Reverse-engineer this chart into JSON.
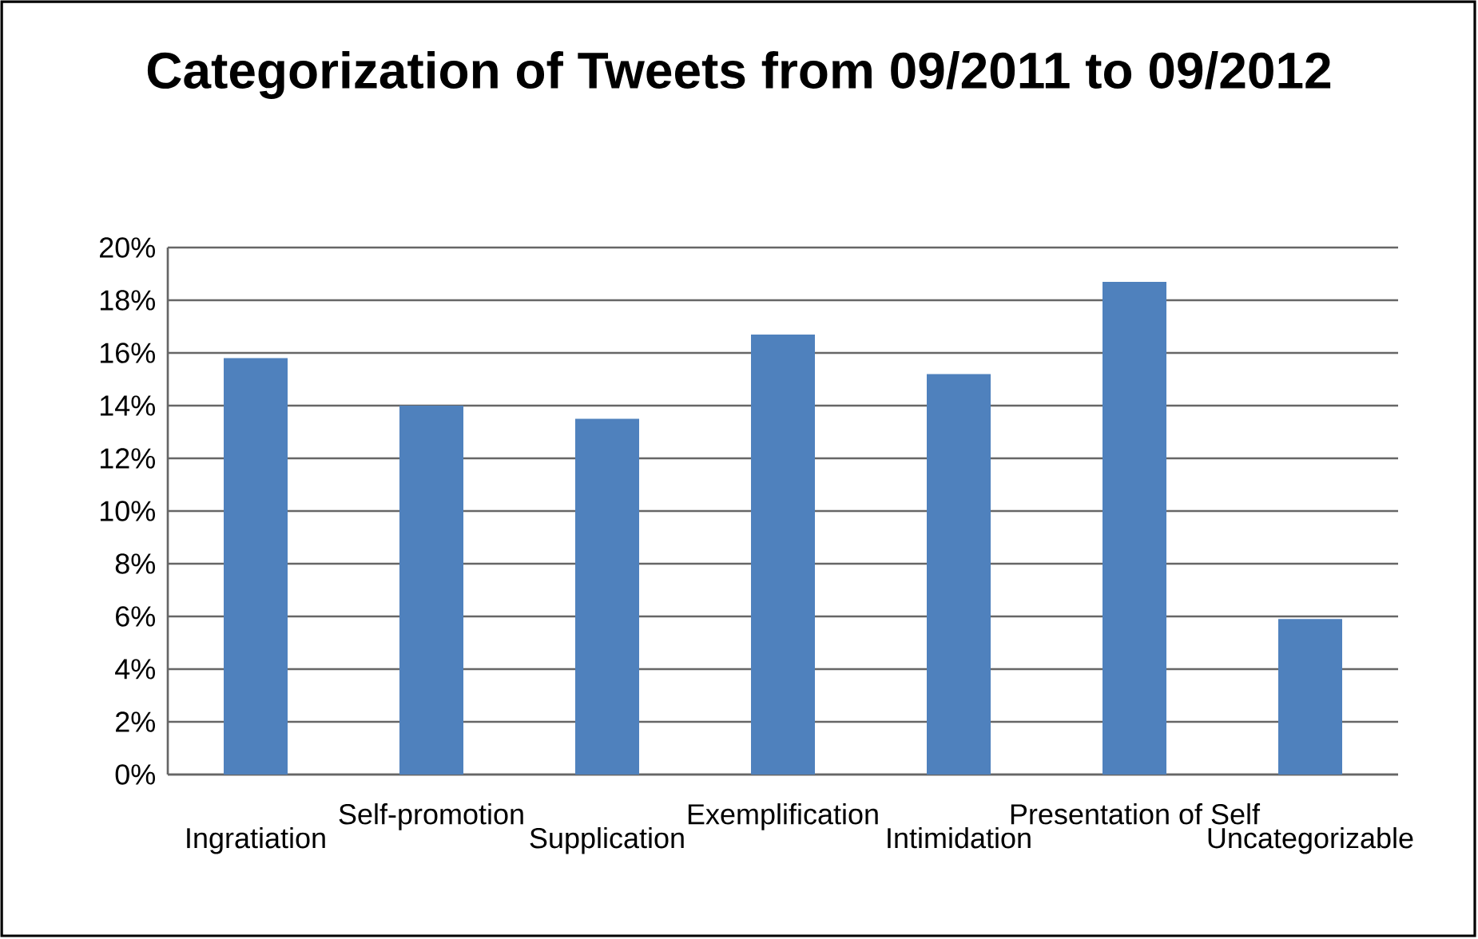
{
  "chart_data": {
    "type": "bar",
    "title": "Categorization of Tweets from 09/2011 to 09/2012",
    "categories": [
      "Ingratiation",
      "Self-promotion",
      "Supplication",
      "Exemplification",
      "Intimidation",
      "Presentation of Self",
      "Uncategorizable"
    ],
    "values": [
      15.8,
      14.0,
      13.5,
      16.7,
      15.2,
      18.7,
      5.9
    ],
    "color": "#4f81bd",
    "ylim": [
      0,
      20
    ],
    "yticks": [
      {
        "value": 0,
        "label": "0%"
      },
      {
        "value": 2,
        "label": "2%"
      },
      {
        "value": 4,
        "label": "4%"
      },
      {
        "value": 6,
        "label": "6%"
      },
      {
        "value": 8,
        "label": "8%"
      },
      {
        "value": 10,
        "label": "10%"
      },
      {
        "value": 12,
        "label": "12%"
      },
      {
        "value": 14,
        "label": "14%"
      },
      {
        "value": 16,
        "label": "16%"
      },
      {
        "value": 18,
        "label": "18%"
      },
      {
        "value": 20,
        "label": "20%"
      }
    ],
    "grid": "y"
  }
}
